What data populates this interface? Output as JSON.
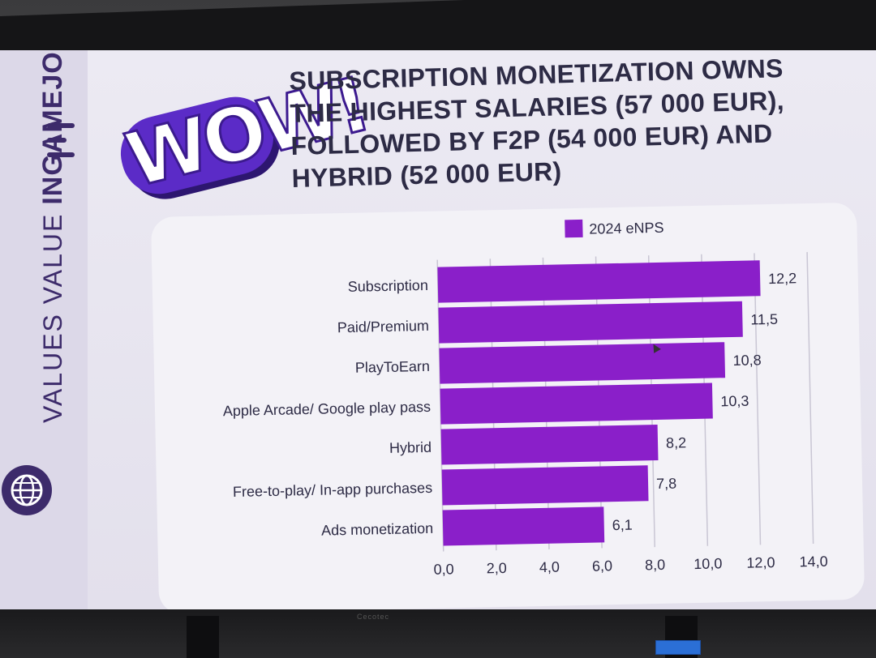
{
  "sidebar": {
    "brand_line1": "VALUES VALUE",
    "brand_line2": "INGAMEJOB"
  },
  "badge": {
    "text": "WOW!"
  },
  "headline": {
    "lines": [
      "SUBSCRIPTION MONETIZATION OWNS",
      "THE HIGHEST SALARIES (57 000 EUR),",
      "FOLLOWED BY F2P (54 000 EUR) AND",
      "HYBRID (52 000 EUR)"
    ]
  },
  "colors": {
    "bar": "#8a1fc9",
    "text": "#2d2b45",
    "grid": "#c9c6d4",
    "brand": "#3d2b6b"
  },
  "chart_data": {
    "type": "bar",
    "orientation": "horizontal",
    "categories": [
      "Subscription",
      "Paid/Premium",
      "PlayToEarn",
      "Apple Arcade/ Google play pass",
      "Hybrid",
      "Free-to-play/ In-app purchases",
      "Ads monetization"
    ],
    "series": [
      {
        "name": "2024 eNPS",
        "values": [
          12.2,
          11.5,
          10.8,
          10.3,
          8.2,
          7.8,
          6.1
        ],
        "value_labels": [
          "12,2",
          "11,5",
          "10,8",
          "10,3",
          "8,2",
          "7,8",
          "6,1"
        ]
      }
    ],
    "xlim": [
      0,
      14
    ],
    "xticks": [
      0,
      2,
      4,
      6,
      8,
      10,
      12,
      14
    ],
    "xtick_labels": [
      "0,0",
      "2,0",
      "4,0",
      "6,0",
      "8,0",
      "10,0",
      "12,0",
      "14,0"
    ],
    "grid": "vertical",
    "legend_position": "top"
  },
  "display": {
    "bezel_brand": "Cecotec"
  }
}
